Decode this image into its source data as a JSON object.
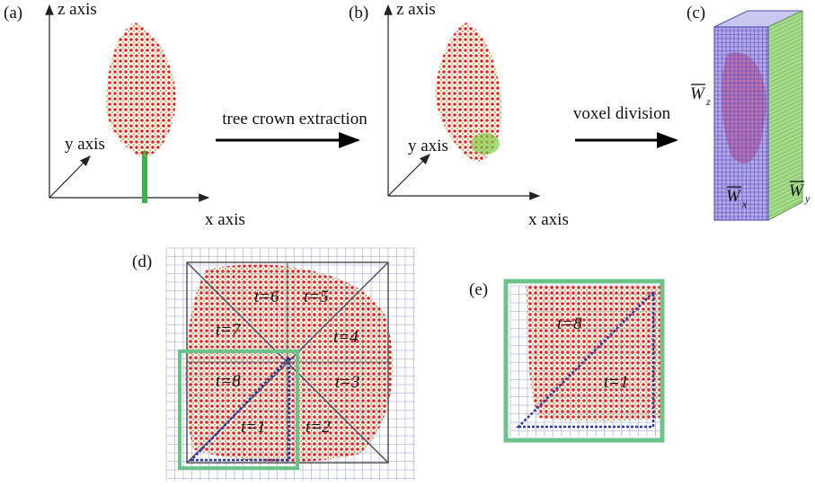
{
  "panels": [
    {
      "label": "(a)",
      "axes": {
        "z": "z axis",
        "y": "y axis",
        "x": "x axis"
      }
    },
    {
      "label": "(b)",
      "axes": {
        "z": "z axis",
        "y": "y axis",
        "x": "x axis"
      }
    },
    {
      "label": "(c)",
      "dims": [
        {
          "symbol": "W",
          "subscript": "z"
        },
        {
          "symbol": "W",
          "subscript": "x"
        },
        {
          "symbol": "W",
          "subscript": "y"
        }
      ]
    },
    {
      "label": "(d)",
      "sectors": [
        "t=6",
        "t=5",
        "t=7",
        "t=4",
        "t=8",
        "t=3",
        "t=1",
        "t=2"
      ]
    },
    {
      "label": "(e)",
      "sectors": [
        "t=8",
        "t=1"
      ]
    }
  ],
  "arrows": [
    "tree crown extraction",
    "voxel division"
  ]
}
